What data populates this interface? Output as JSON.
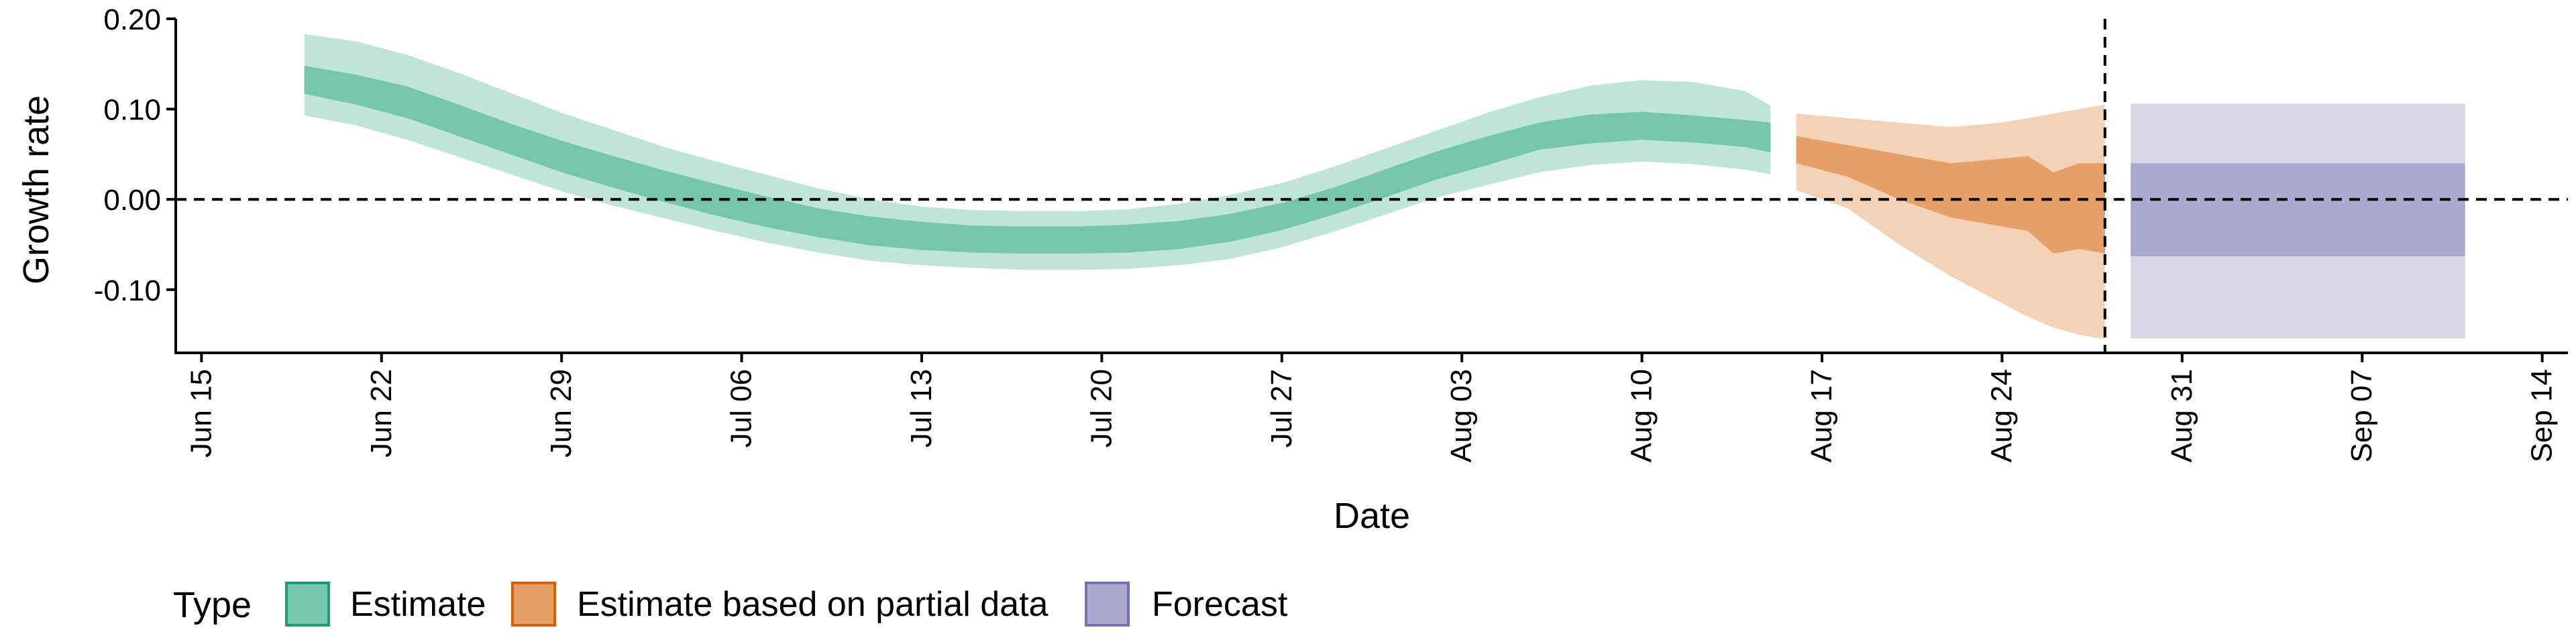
{
  "chart_data": {
    "type": "area",
    "xlabel": "Date",
    "ylabel": "Growth rate",
    "ylim": [
      -0.17,
      0.2
    ],
    "xlim": [
      "2020-06-14",
      "2020-09-15"
    ],
    "x_ticks": [
      {
        "date": "2020-06-15",
        "label": "Jun 15"
      },
      {
        "date": "2020-06-22",
        "label": "Jun 22"
      },
      {
        "date": "2020-06-29",
        "label": "Jun 29"
      },
      {
        "date": "2020-07-06",
        "label": "Jul 06"
      },
      {
        "date": "2020-07-13",
        "label": "Jul 13"
      },
      {
        "date": "2020-07-20",
        "label": "Jul 20"
      },
      {
        "date": "2020-07-27",
        "label": "Jul 27"
      },
      {
        "date": "2020-08-03",
        "label": "Aug 03"
      },
      {
        "date": "2020-08-10",
        "label": "Aug 10"
      },
      {
        "date": "2020-08-17",
        "label": "Aug 17"
      },
      {
        "date": "2020-08-24",
        "label": "Aug 24"
      },
      {
        "date": "2020-08-31",
        "label": "Aug 31"
      },
      {
        "date": "2020-09-07",
        "label": "Sep 07"
      },
      {
        "date": "2020-09-14",
        "label": "Sep 14"
      }
    ],
    "y_ticks": [
      {
        "value": 0.2,
        "label": "0.20"
      },
      {
        "value": 0.1,
        "label": "0.10"
      },
      {
        "value": 0.0,
        "label": "0.00"
      },
      {
        "value": -0.1,
        "label": "-0.10"
      }
    ],
    "hline": 0,
    "vline_date": "2020-08-28",
    "legend": {
      "title": "Type",
      "placement": "bottom"
    },
    "series": [
      {
        "name": "Estimate",
        "color": "#1b9e77",
        "x": [
          "2020-06-19",
          "2020-06-21",
          "2020-06-23",
          "2020-06-25",
          "2020-06-27",
          "2020-06-29",
          "2020-07-01",
          "2020-07-03",
          "2020-07-05",
          "2020-07-07",
          "2020-07-09",
          "2020-07-11",
          "2020-07-13",
          "2020-07-15",
          "2020-07-17",
          "2020-07-19",
          "2020-07-21",
          "2020-07-23",
          "2020-07-25",
          "2020-07-27",
          "2020-07-29",
          "2020-07-31",
          "2020-08-02",
          "2020-08-04",
          "2020-08-06",
          "2020-08-08",
          "2020-08-10",
          "2020-08-12",
          "2020-08-14",
          "2020-08-15"
        ],
        "lower_90": [
          0.093,
          0.082,
          0.066,
          0.047,
          0.028,
          0.009,
          -0.007,
          -0.021,
          -0.035,
          -0.048,
          -0.059,
          -0.068,
          -0.073,
          -0.076,
          -0.078,
          -0.078,
          -0.077,
          -0.073,
          -0.066,
          -0.053,
          -0.036,
          -0.017,
          0.002,
          0.016,
          0.03,
          0.038,
          0.042,
          0.039,
          0.033,
          0.028
        ],
        "lower_50": [
          0.117,
          0.105,
          0.09,
          0.07,
          0.05,
          0.03,
          0.013,
          -0.003,
          -0.018,
          -0.031,
          -0.042,
          -0.051,
          -0.056,
          -0.059,
          -0.06,
          -0.06,
          -0.059,
          -0.055,
          -0.047,
          -0.034,
          -0.017,
          0.002,
          0.022,
          0.038,
          0.055,
          0.062,
          0.066,
          0.063,
          0.058,
          0.052
        ],
        "upper_50": [
          0.148,
          0.138,
          0.125,
          0.105,
          0.084,
          0.065,
          0.048,
          0.032,
          0.017,
          0.003,
          -0.01,
          -0.019,
          -0.025,
          -0.029,
          -0.03,
          -0.03,
          -0.028,
          -0.024,
          -0.016,
          -0.004,
          0.013,
          0.033,
          0.053,
          0.07,
          0.085,
          0.094,
          0.097,
          0.093,
          0.088,
          0.085
        ],
        "upper_90": [
          0.183,
          0.175,
          0.16,
          0.14,
          0.118,
          0.096,
          0.077,
          0.058,
          0.042,
          0.027,
          0.012,
          0.0,
          -0.008,
          -0.012,
          -0.013,
          -0.013,
          -0.011,
          -0.005,
          0.005,
          0.018,
          0.036,
          0.056,
          0.076,
          0.096,
          0.113,
          0.126,
          0.132,
          0.13,
          0.12,
          0.104
        ]
      },
      {
        "name": "Estimate based on partial data",
        "color": "#d95f02",
        "x": [
          "2020-08-16",
          "2020-08-18",
          "2020-08-20",
          "2020-08-22",
          "2020-08-24",
          "2020-08-25",
          "2020-08-26",
          "2020-08-27",
          "2020-08-28"
        ],
        "lower_90": [
          0.01,
          -0.01,
          -0.05,
          -0.085,
          -0.115,
          -0.13,
          -0.142,
          -0.15,
          -0.155
        ],
        "lower_50": [
          0.04,
          0.025,
          0.0,
          -0.02,
          -0.03,
          -0.035,
          -0.06,
          -0.055,
          -0.06
        ],
        "upper_50": [
          0.07,
          0.06,
          0.05,
          0.04,
          0.045,
          0.048,
          0.03,
          0.04,
          0.04
        ],
        "upper_90": [
          0.095,
          0.09,
          0.085,
          0.08,
          0.085,
          0.09,
          0.095,
          0.1,
          0.105
        ]
      },
      {
        "name": "Forecast",
        "color": "#7570b3",
        "x": [
          "2020-08-29",
          "2020-09-11"
        ],
        "lower_90": [
          -0.154,
          -0.154
        ],
        "lower_50": [
          -0.063,
          -0.063
        ],
        "upper_50": [
          0.04,
          0.04
        ],
        "upper_90": [
          0.106,
          0.106
        ]
      }
    ]
  }
}
